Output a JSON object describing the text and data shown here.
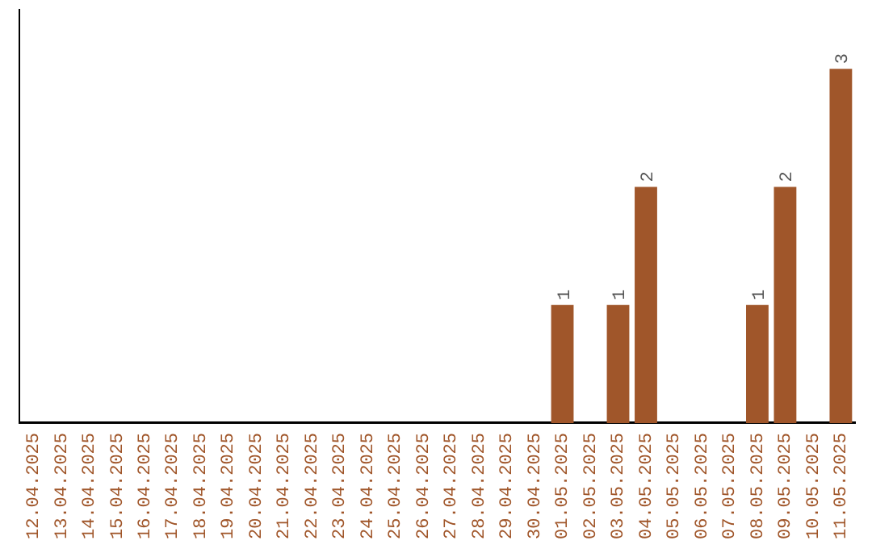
{
  "chart_data": {
    "type": "bar",
    "categories": [
      "12.04.2025",
      "13.04.2025",
      "14.04.2025",
      "15.04.2025",
      "16.04.2025",
      "17.04.2025",
      "18.04.2025",
      "19.04.2025",
      "20.04.2025",
      "21.04.2025",
      "22.04.2025",
      "23.04.2025",
      "24.04.2025",
      "25.04.2025",
      "26.04.2025",
      "27.04.2025",
      "28.04.2025",
      "29.04.2025",
      "30.04.2025",
      "01.05.2025",
      "02.05.2025",
      "03.05.2025",
      "04.05.2025",
      "05.05.2025",
      "06.05.2025",
      "07.05.2025",
      "08.05.2025",
      "09.05.2025",
      "10.05.2025",
      "11.05.2025"
    ],
    "values": [
      null,
      null,
      null,
      null,
      null,
      null,
      null,
      null,
      null,
      null,
      null,
      null,
      null,
      null,
      null,
      null,
      null,
      null,
      null,
      1,
      null,
      1,
      2,
      null,
      null,
      null,
      1,
      2,
      null,
      3
    ],
    "data_labels": true,
    "color": "#a0562a",
    "grid": false,
    "legend": false,
    "tick_labels": "x"
  }
}
